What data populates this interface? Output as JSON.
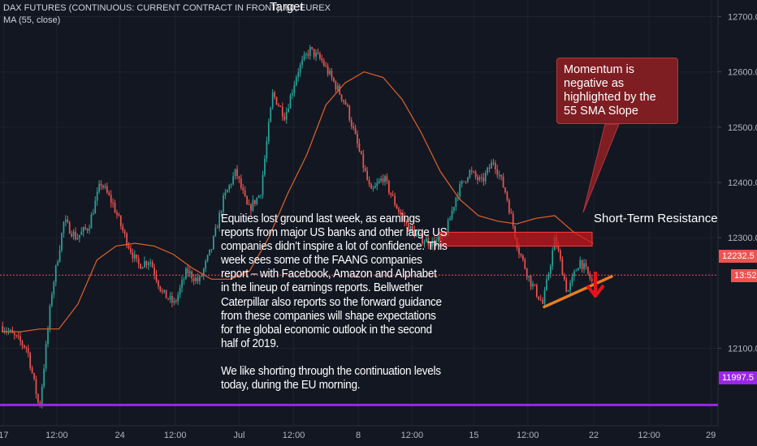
{
  "header": {
    "symbol_line": "DAX FUTURES (CONTINUOUS: CURRENT CONTRACT IN FRONT), 60, EUREX",
    "indicator_line": "MA (55, close)",
    "target_label": "Target"
  },
  "annotations": {
    "body_paragraph_1": "Equities lost ground last week, as earnings reports from major US banks and other large US companies didn’t inspire a lot of confidence. This week sees some of the FAANG companies report – with Facebook, Amazon and Alphabet in the lineup of earnings reports. Bellwether Caterpillar also reports so the forward guidance from these companies will shape  expectations for the global economic outlook in the second half of 2019.",
    "body_paragraph_2": "We like shorting through the continuation levels today, during the EU morning.",
    "callout": "Momentum is negative as highlighted by the 55 SMA Slope",
    "resistance_label": "Short-Term Resistance"
  },
  "price_tags": {
    "last_price": "12232.5",
    "countdown": "13:52",
    "support_level": "11997.5"
  },
  "colors": {
    "background": "#131722",
    "up_candle": "#26a69a",
    "down_candle": "#ef5350",
    "ma_line": "#e0622a",
    "support_line": "#9b26e8",
    "resistance_zone": "#d0161c",
    "trendline": "#e67e22",
    "arrow": "#e8121a",
    "callout_bg": "#7e1d22"
  },
  "chart_data": {
    "type": "candlestick",
    "title": "DAX FUTURES (CONTINUOUS: CURRENT CONTRACT IN FRONT), 60, EUREX",
    "y_range": [
      11960,
      12730
    ],
    "y_ticks": [
      "12700.0",
      "12600.0",
      "12500.0",
      "12400.0",
      "12300.0",
      "12100.0"
    ],
    "y_tick_values": [
      12700,
      12600,
      12500,
      12400,
      12300,
      12100
    ],
    "x_ticks": [
      "17",
      "12:00",
      "24",
      "12:00",
      "Jul",
      "12:00",
      "8",
      "12:00",
      "15",
      "12:00",
      "22",
      "12:00",
      "29"
    ],
    "price_anchors": [
      12140,
      12120,
      12100,
      11990,
      12200,
      12330,
      12300,
      12320,
      12400,
      12360,
      12300,
      12250,
      12260,
      12200,
      12180,
      12240,
      12220,
      12280,
      12370,
      12420,
      12350,
      12380,
      12560,
      12520,
      12600,
      12640,
      12620,
      12580,
      12540,
      12460,
      12380,
      12410,
      12360,
      12320,
      12300,
      12290,
      12300,
      12380,
      12420,
      12400,
      12440,
      12380,
      12280,
      12220,
      12180,
      12300,
      12200,
      12260,
      12220
    ],
    "ma_anchors": [
      12130,
      12130,
      12135,
      12135,
      12180,
      12260,
      12285,
      12290,
      12285,
      12270,
      12245,
      12225,
      12225,
      12240,
      12300,
      12380,
      12450,
      12540,
      12580,
      12600,
      12590,
      12550,
      12490,
      12420,
      12370,
      12340,
      12330,
      12325,
      12335,
      12340,
      12310,
      12290
    ],
    "resistance_zone": [
      12285,
      12310
    ],
    "support_level": 11997.5,
    "last_price": 12232.5,
    "trendline": [
      [
        12175,
        0
      ],
      [
        12230,
        1
      ]
    ]
  }
}
